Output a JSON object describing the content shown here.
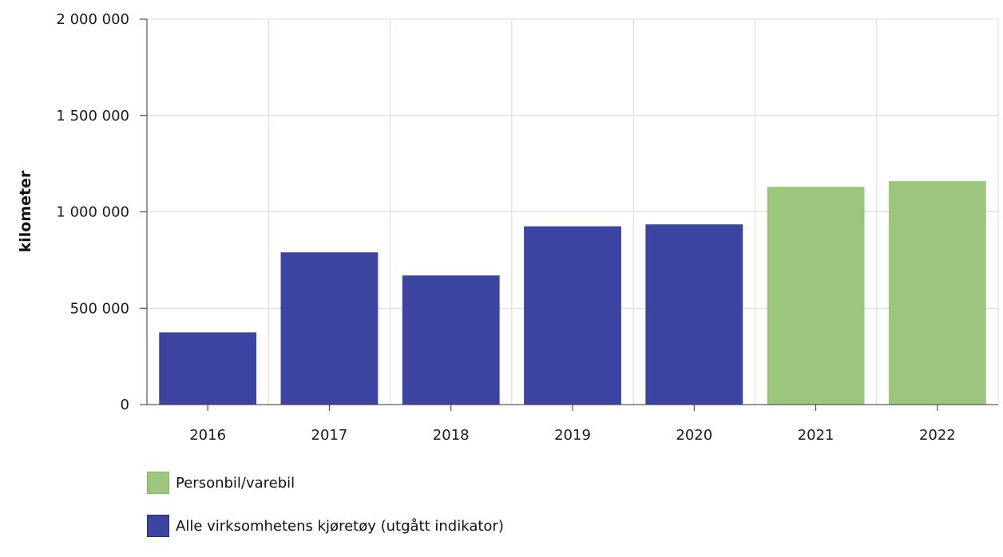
{
  "chart_data": {
    "type": "bar",
    "categories": [
      "2016",
      "2017",
      "2018",
      "2019",
      "2020",
      "2021",
      "2022"
    ],
    "values": [
      375000,
      790000,
      670000,
      925000,
      935000,
      1130000,
      1160000
    ],
    "series_of_bar": [
      1,
      1,
      1,
      1,
      1,
      0,
      0
    ],
    "series": [
      {
        "name": "Personbil/varebil",
        "color": "#9cc57e",
        "border": "#84b866"
      },
      {
        "name": "Alle virksomhetens kjøretøy (utgått indikator)",
        "color": "#3c44a2",
        "border": "#262d8c"
      }
    ],
    "ylabel": "kilometer",
    "xlabel": "",
    "title": "",
    "ylim": [
      0,
      2000000
    ],
    "yticks": [
      0,
      500000,
      1000000,
      1500000,
      2000000
    ],
    "ytick_labels": [
      "0",
      "500 000",
      "1 000 000",
      "1 500 000",
      "2 000 000"
    ],
    "grid": true,
    "legend_position": "bottom-left"
  }
}
